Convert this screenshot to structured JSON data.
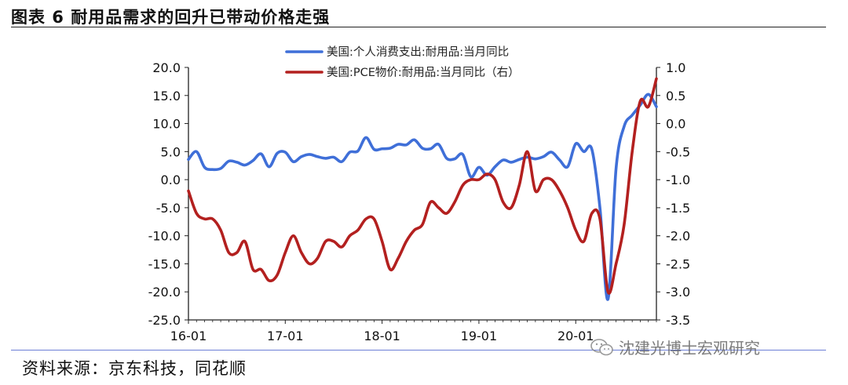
{
  "figure": {
    "title": "图表 6  耐用品需求的回升已带动价格走强",
    "source": "资料来源：京东科技，同花顺",
    "watermark": "沈建光博士宏观研究",
    "watermark_icon": "wechat-icon"
  },
  "chart_data": {
    "type": "line",
    "x_ticks": [
      "16-01",
      "17-01",
      "18-01",
      "19-01",
      "20-01"
    ],
    "x_range": [
      "2016-01",
      "2020-11"
    ],
    "left_axis": {
      "ylim": [
        -25,
        20
      ],
      "ticks": [
        "20.0",
        "15.0",
        "10.0",
        "5.0",
        "0.0",
        "-5.0",
        "-10.0",
        "-15.0",
        "-20.0",
        "-25.0"
      ]
    },
    "right_axis": {
      "ylim": [
        -3.5,
        1.0
      ],
      "ticks": [
        "1.0",
        "0.5",
        "0.0",
        "-0.5",
        "-1.0",
        "-1.5",
        "-2.0",
        "-2.5",
        "-3.0",
        "-3.5"
      ]
    },
    "legend_position": "top-center",
    "grid": false,
    "series": [
      {
        "name": "美国:个人消费支出:耐用品:当月同比",
        "axis": "left",
        "color": "#3f6fd8",
        "values": [
          3.6,
          5.0,
          2.2,
          1.8,
          2.0,
          3.3,
          3.1,
          2.6,
          3.4,
          4.6,
          2.3,
          4.7,
          4.9,
          3.2,
          4.1,
          4.5,
          4.1,
          3.8,
          4.0,
          3.2,
          4.9,
          5.1,
          7.5,
          5.4,
          5.5,
          5.6,
          6.3,
          6.2,
          7.1,
          5.6,
          5.5,
          6.3,
          3.8,
          3.7,
          4.5,
          0.5,
          2.2,
          0.8,
          2.3,
          3.5,
          3.1,
          3.6,
          4.0,
          3.7,
          4.1,
          4.9,
          3.5,
          2.3,
          6.4,
          5.0,
          5.4,
          -5.0,
          -21.3,
          2.0,
          9.5,
          11.5,
          13.3,
          15.2,
          13.0
        ]
      },
      {
        "name": "美国:PCE物价:耐用品:当月同比（右）",
        "axis": "right",
        "color": "#b3201f",
        "values": [
          -1.2,
          -1.6,
          -1.7,
          -1.7,
          -1.9,
          -2.3,
          -2.3,
          -2.1,
          -2.6,
          -2.6,
          -2.8,
          -2.7,
          -2.3,
          -2.0,
          -2.3,
          -2.5,
          -2.4,
          -2.1,
          -2.1,
          -2.2,
          -2.0,
          -1.9,
          -1.7,
          -1.7,
          -2.1,
          -2.6,
          -2.4,
          -2.1,
          -1.9,
          -1.8,
          -1.4,
          -1.5,
          -1.6,
          -1.4,
          -1.1,
          -1.0,
          -1.0,
          -0.9,
          -1.0,
          -1.4,
          -1.5,
          -1.1,
          -0.5,
          -1.2,
          -1.0,
          -1.0,
          -1.2,
          -1.5,
          -1.9,
          -2.1,
          -1.6,
          -1.7,
          -3.0,
          -2.5,
          -1.8,
          -0.5,
          0.4,
          0.3,
          0.8
        ]
      }
    ]
  }
}
